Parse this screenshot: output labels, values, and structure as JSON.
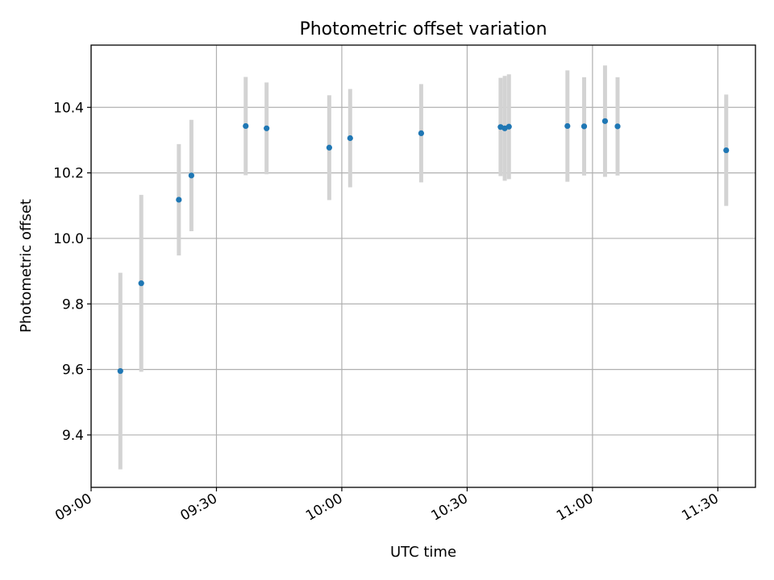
{
  "chart_data": {
    "type": "scatter",
    "title": "Photometric offset variation",
    "xlabel": "UTC time",
    "ylabel": "Photometric offset",
    "xlim": [
      "09:00",
      "11:39"
    ],
    "ylim": [
      9.24,
      10.59
    ],
    "grid": true,
    "x_ticks": [
      "09:00",
      "09:30",
      "10:00",
      "10:30",
      "11:00",
      "11:30"
    ],
    "y_ticks": [
      "9.4",
      "9.6",
      "9.8",
      "10.0",
      "10.2",
      "10.4"
    ],
    "colors": {
      "point": "#1f77b4",
      "errorbar": "#d3d3d3",
      "grid": "#b0b0b0"
    },
    "series": [
      {
        "points": [
          {
            "x": "09:07",
            "y": 9.595,
            "yerr": 0.3
          },
          {
            "x": "09:12",
            "y": 9.863,
            "yerr": 0.27
          },
          {
            "x": "09:21",
            "y": 10.118,
            "yerr": 0.17
          },
          {
            "x": "09:24",
            "y": 10.192,
            "yerr": 0.17
          },
          {
            "x": "09:37",
            "y": 10.343,
            "yerr": 0.15
          },
          {
            "x": "09:42",
            "y": 10.336,
            "yerr": 0.14
          },
          {
            "x": "09:57",
            "y": 10.277,
            "yerr": 0.16
          },
          {
            "x": "10:02",
            "y": 10.306,
            "yerr": 0.15
          },
          {
            "x": "10:19",
            "y": 10.321,
            "yerr": 0.15
          },
          {
            "x": "10:38",
            "y": 10.34,
            "yerr": 0.15
          },
          {
            "x": "10:39",
            "y": 10.336,
            "yerr": 0.16
          },
          {
            "x": "10:40",
            "y": 10.341,
            "yerr": 0.16
          },
          {
            "x": "10:54",
            "y": 10.343,
            "yerr": 0.17
          },
          {
            "x": "10:58",
            "y": 10.342,
            "yerr": 0.15
          },
          {
            "x": "11:03",
            "y": 10.358,
            "yerr": 0.17
          },
          {
            "x": "11:06",
            "y": 10.342,
            "yerr": 0.15
          },
          {
            "x": "11:32",
            "y": 10.269,
            "yerr": 0.17
          }
        ]
      }
    ]
  }
}
